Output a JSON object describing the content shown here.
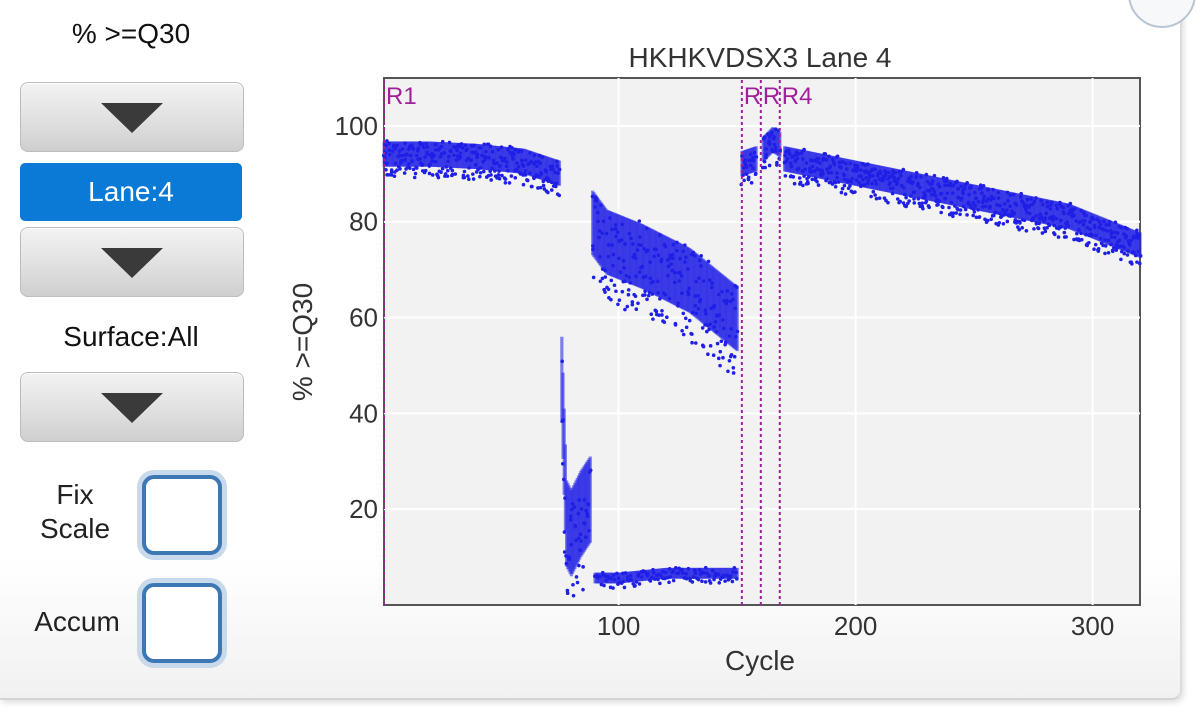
{
  "sidebar": {
    "metric_label": "% >=Q30",
    "lane_label": "Lane:4",
    "surface_label": "Surface:All",
    "fix_scale_line1": "Fix",
    "fix_scale_line2": "Scale",
    "accum_label": "Accum",
    "icons": [
      "dropdown-arrow-icon"
    ]
  },
  "colors": {
    "accent": "#0a7ad6",
    "series": "#1f1fe6",
    "cycle_marker": "#a0209a",
    "checkbox_border": "#3d78b4"
  },
  "chart_data": {
    "type": "scatter",
    "title": "HKHKVDSX3 Lane 4",
    "xlabel": "Cycle",
    "ylabel": "% >=Q30",
    "xlim": [
      1,
      320
    ],
    "ylim": [
      0,
      110
    ],
    "x_ticks": [
      100,
      200,
      300
    ],
    "y_ticks": [
      20,
      40,
      60,
      80,
      100
    ],
    "grid": true,
    "read_markers": [
      {
        "label": "R1",
        "x": 1
      },
      {
        "label": "R",
        "x": 152
      },
      {
        "label": "R",
        "x": 160
      },
      {
        "label": "R4",
        "x": 168
      }
    ],
    "series": [
      {
        "description_points": "median band of %>=Q30 per cycle",
        "segments": [
          {
            "x": [
              1,
              20,
              40,
              60,
              75
            ],
            "y": [
              95,
              95,
              94.5,
              93.5,
              91
            ]
          },
          {
            "x": [
              76,
              78,
              80,
              84,
              88
            ],
            "y": [
              50,
              20,
              18,
              22,
              25
            ]
          },
          {
            "x": [
              89,
              95,
              110,
              130,
              150
            ],
            "y": [
              82,
              78,
              75,
              70,
              62
            ]
          },
          {
            "x": [
              90,
              100,
              120,
              140,
              150
            ],
            "y": [
              6,
              6,
              7,
              7,
              7
            ]
          },
          {
            "x": [
              152,
              158
            ],
            "y": [
              93,
              94
            ]
          },
          {
            "x": [
              161,
              165,
              168
            ],
            "y": [
              96,
              98,
              97
            ]
          },
          {
            "x": [
              170,
              200,
              230,
              260,
              290,
              320
            ],
            "y": [
              94,
              91,
              88,
              85,
              82,
              76
            ]
          }
        ]
      }
    ]
  }
}
